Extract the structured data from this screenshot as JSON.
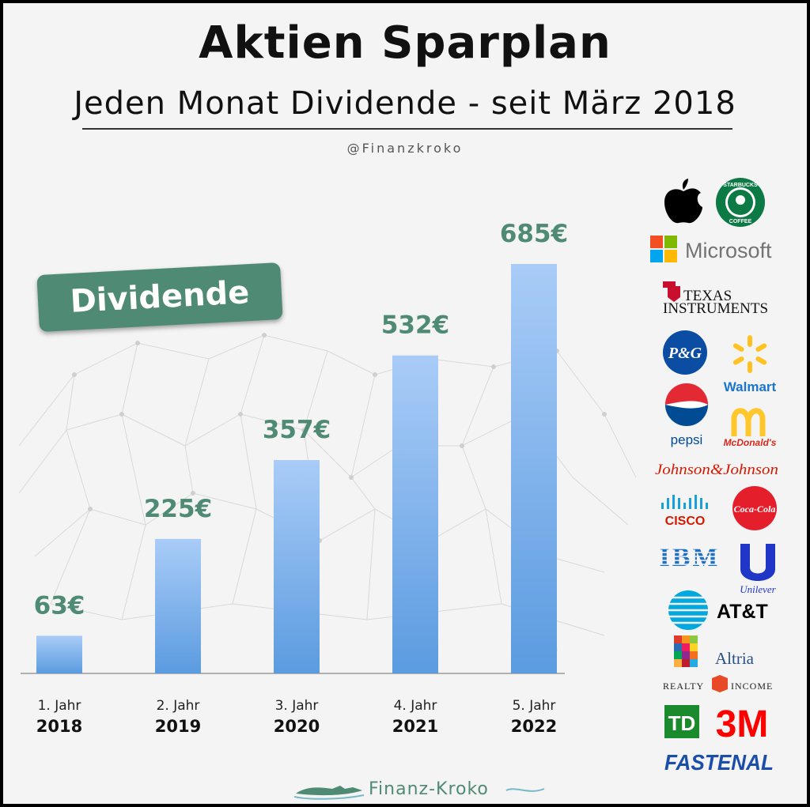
{
  "header": {
    "title": "Aktien Sparplan",
    "subtitle": "Jeden Monat Dividende - seit März 2018",
    "handle": "@Finanzkroko"
  },
  "badge": {
    "label": "Dividende"
  },
  "colors": {
    "accent": "#4f8a74",
    "bar_top": "#a9ccf7",
    "bar_bottom": "#5b9be0",
    "value_text": "#4f8a74"
  },
  "chart_data": {
    "type": "bar",
    "categories": [
      "1. Jahr",
      "2. Jahr",
      "3. Jahr",
      "4. Jahr",
      "5. Jahr"
    ],
    "years": [
      "2018",
      "2019",
      "2020",
      "2021",
      "2022"
    ],
    "values": [
      63,
      225,
      357,
      532,
      685
    ],
    "value_labels": [
      "63€",
      "225€",
      "357€",
      "532€",
      "685€"
    ],
    "title": "Aktien Sparplan",
    "xlabel": "",
    "ylabel": "",
    "ylim": [
      0,
      685
    ],
    "grid": false,
    "legend": "none"
  },
  "logos": {
    "apple": "apple-logo",
    "starbucks": {
      "text_top": "STARBUCKS",
      "text_bottom": "COFFEE"
    },
    "microsoft": "Microsoft",
    "texas_instruments": {
      "line1": "TEXAS",
      "line2": "INSTRUMENTS"
    },
    "pg": "P&G",
    "walmart": "Walmart",
    "pepsi": "pepsi",
    "mcdonalds": "McDonald's",
    "jnj": "Johnson&Johnson",
    "cisco": "CISCO",
    "cocacola": "Coca-Cola",
    "ibm": "IBM",
    "unilever": "Unilever",
    "att": "AT&T",
    "altria": "Altria",
    "realty_income": {
      "left": "REALTY",
      "right": "INCOME"
    },
    "td": "TD",
    "mmm": "3M",
    "fastenal": "FASTENAL"
  },
  "footer": {
    "brand": "Finanz-Kroko"
  }
}
